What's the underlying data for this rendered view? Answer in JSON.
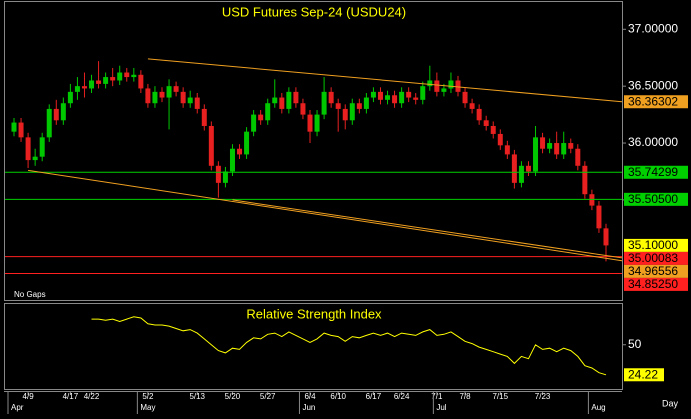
{
  "chart_data": [
    {
      "type": "candlestick",
      "title": "USD Futures Sep-24 (USDU24)",
      "note": "No Gaps",
      "x_unit_label": "Day",
      "categories": [
        null,
        null,
        "4/9",
        null,
        null,
        null,
        null,
        null,
        "4/17",
        null,
        null,
        "4/22",
        null,
        null,
        null,
        null,
        null,
        null,
        null,
        "5/2",
        null,
        null,
        null,
        null,
        null,
        null,
        "5/13",
        null,
        null,
        null,
        null,
        "5/20",
        null,
        null,
        null,
        null,
        "5/27",
        null,
        null,
        null,
        null,
        null,
        "6/4",
        null,
        null,
        null,
        "6/10",
        null,
        null,
        null,
        null,
        "6/17",
        null,
        null,
        null,
        "6/24",
        null,
        null,
        null,
        null,
        "7/1",
        null,
        null,
        null,
        "7/8",
        null,
        null,
        null,
        null,
        "7/15",
        null,
        null,
        null,
        null,
        null,
        "7/23",
        null,
        null,
        null,
        null,
        null,
        null,
        null,
        null,
        null
      ],
      "months": [
        "Apr",
        null,
        null,
        null,
        null,
        null,
        null,
        null,
        null,
        null,
        null,
        null,
        null,
        null,
        null,
        null,
        null,
        null,
        "May",
        null,
        null,
        null,
        null,
        null,
        null,
        null,
        null,
        null,
        null,
        null,
        null,
        null,
        null,
        null,
        null,
        null,
        null,
        null,
        null,
        null,
        null,
        "Jun",
        null,
        null,
        null,
        null,
        null,
        null,
        null,
        null,
        null,
        null,
        null,
        null,
        null,
        null,
        null,
        null,
        null,
        null,
        "Jul",
        null,
        null,
        null,
        null,
        null,
        null,
        null,
        null,
        null,
        null,
        null,
        null,
        null,
        null,
        null,
        null,
        null,
        null,
        null,
        null,
        null,
        "Aug",
        null,
        null
      ],
      "open": [
        36.1,
        36.18,
        36.05,
        35.85,
        35.88,
        36.05,
        36.3,
        36.2,
        36.35,
        36.45,
        36.5,
        36.48,
        36.55,
        36.52,
        36.58,
        36.55,
        36.62,
        36.58,
        36.6,
        36.48,
        36.35,
        36.45,
        36.4,
        36.5,
        36.45,
        36.35,
        36.4,
        36.3,
        36.15,
        35.8,
        35.65,
        35.75,
        35.95,
        35.9,
        36.1,
        36.25,
        36.2,
        36.35,
        36.4,
        36.3,
        36.45,
        36.35,
        36.25,
        36.1,
        36.25,
        36.45,
        36.35,
        36.3,
        36.2,
        36.35,
        36.3,
        36.4,
        36.45,
        36.38,
        36.42,
        36.35,
        36.45,
        36.4,
        36.38,
        36.5,
        36.55,
        36.45,
        36.48,
        36.55,
        36.45,
        36.35,
        36.3,
        36.2,
        36.15,
        36.08,
        35.98,
        35.9,
        35.65,
        35.8,
        35.75,
        36.05,
        35.95,
        36.0,
        35.9,
        36.0,
        35.95,
        35.8,
        35.55,
        35.45,
        35.25
      ],
      "high": [
        36.22,
        36.22,
        36.09,
        35.95,
        36.09,
        36.34,
        36.38,
        36.4,
        36.52,
        36.58,
        36.62,
        36.6,
        36.72,
        36.62,
        36.66,
        36.68,
        36.66,
        36.66,
        36.64,
        36.52,
        36.5,
        36.49,
        36.56,
        36.54,
        36.49,
        36.46,
        36.44,
        36.34,
        36.19,
        35.84,
        35.79,
        35.99,
        35.99,
        36.14,
        36.29,
        36.29,
        36.39,
        36.56,
        36.44,
        36.49,
        36.49,
        36.39,
        36.29,
        36.29,
        36.58,
        36.49,
        36.39,
        36.34,
        36.39,
        36.39,
        36.44,
        36.49,
        36.49,
        36.46,
        36.46,
        36.49,
        36.49,
        36.44,
        36.54,
        36.68,
        36.62,
        36.52,
        36.62,
        36.59,
        36.49,
        36.39,
        36.34,
        36.24,
        36.19,
        36.12,
        36.02,
        35.94,
        35.84,
        35.84,
        36.15,
        36.09,
        36.04,
        36.1,
        36.1,
        36.04,
        35.99,
        35.84,
        35.59,
        35.49,
        35.29
      ],
      "low": [
        36.06,
        36.01,
        35.78,
        35.8,
        35.84,
        36.01,
        36.16,
        36.16,
        36.31,
        36.38,
        36.4,
        36.44,
        36.48,
        36.48,
        36.5,
        36.51,
        36.54,
        36.54,
        36.44,
        36.31,
        36.31,
        36.36,
        36.12,
        36.41,
        36.31,
        36.31,
        36.26,
        36.11,
        35.76,
        35.52,
        35.61,
        35.71,
        35.86,
        35.86,
        36.06,
        36.16,
        36.16,
        36.31,
        36.26,
        36.26,
        36.31,
        36.21,
        36.0,
        36.06,
        36.21,
        36.31,
        36.1,
        36.12,
        36.16,
        36.26,
        36.26,
        36.36,
        36.34,
        36.34,
        36.31,
        36.31,
        36.36,
        36.34,
        36.34,
        36.46,
        36.41,
        36.41,
        36.44,
        36.41,
        36.31,
        36.26,
        36.16,
        36.11,
        36.04,
        35.94,
        35.86,
        35.6,
        35.61,
        35.71,
        35.71,
        35.91,
        35.91,
        35.86,
        35.86,
        35.91,
        35.76,
        35.51,
        35.41,
        35.21,
        34.96
      ],
      "close": [
        36.18,
        36.05,
        35.85,
        35.88,
        36.05,
        36.3,
        36.2,
        36.35,
        36.45,
        36.5,
        36.48,
        36.55,
        36.52,
        36.58,
        36.55,
        36.62,
        36.58,
        36.6,
        36.48,
        36.35,
        36.45,
        36.4,
        36.5,
        36.45,
        36.35,
        36.4,
        36.3,
        36.15,
        35.8,
        35.65,
        35.75,
        35.95,
        35.9,
        36.1,
        36.25,
        36.2,
        36.35,
        36.4,
        36.3,
        36.45,
        36.35,
        36.25,
        36.1,
        36.25,
        36.45,
        36.35,
        36.3,
        36.2,
        36.35,
        36.3,
        36.4,
        36.45,
        36.38,
        36.42,
        36.35,
        36.45,
        36.4,
        36.38,
        36.5,
        36.55,
        36.45,
        36.48,
        36.55,
        36.45,
        36.35,
        36.3,
        36.2,
        36.15,
        36.08,
        35.98,
        35.9,
        35.65,
        35.8,
        35.75,
        36.05,
        35.95,
        36.0,
        35.9,
        36.0,
        35.95,
        35.8,
        35.55,
        35.45,
        35.25,
        35.1
      ],
      "up_color": "#00c800",
      "down_color": "#e82020",
      "ylim": [
        34.62,
        37.24
      ],
      "yticks": [
        {
          "value": 35.5,
          "label": "35.50000"
        },
        {
          "value": 36,
          "label": "36.00000"
        },
        {
          "value": 36.5,
          "label": "36.50000"
        },
        {
          "value": 37,
          "label": "37.00000"
        }
      ],
      "levels": [
        {
          "kind": "trend",
          "start": "5/2",
          "start_value": 36.74,
          "value": 36.36302,
          "label": "36.36302",
          "color": "#f0a020"
        },
        {
          "kind": "hline",
          "value": 35.74299,
          "label": "35.74299",
          "color": "#00d000"
        },
        {
          "kind": "hline",
          "value": 35.505,
          "label": "35.50500",
          "color": "#00d000"
        },
        {
          "kind": "last",
          "value": 35.1,
          "label": "35.10000",
          "color": "#ffff00"
        },
        {
          "kind": "hline",
          "value": 35.00083,
          "label": "35.00083",
          "color": "#ff2020"
        },
        {
          "kind": "trend",
          "start": "4/9",
          "start_value": 35.76,
          "value": 34.96556,
          "label": "34.96556",
          "color": "#f0a020"
        },
        {
          "kind": "trend",
          "start": "5/20",
          "start_value": 35.5,
          "value": 34.99,
          "color": "#f0a020"
        },
        {
          "kind": "hline",
          "value": 34.8525,
          "label": "34.85250",
          "color": "#ff2020"
        }
      ]
    },
    {
      "type": "line",
      "title": "Relative Strength Index",
      "series": [
        {
          "name": "Relative Strength Index",
          "color": "#ffff00",
          "values": [
            null,
            null,
            null,
            null,
            null,
            null,
            null,
            null,
            null,
            null,
            null,
            72,
            72,
            71,
            72,
            70,
            72,
            74,
            73,
            68,
            67,
            67,
            66,
            64,
            62,
            63,
            60,
            55,
            50,
            45,
            43,
            47,
            46,
            52,
            56,
            55,
            59,
            60,
            57,
            61,
            58,
            55,
            52,
            55,
            60,
            58,
            57,
            53,
            57,
            56,
            58,
            60,
            58,
            60,
            57,
            60,
            59,
            58,
            61,
            63,
            58,
            59,
            61,
            57,
            53,
            51,
            48,
            46,
            44,
            42,
            40,
            34,
            40,
            38,
            50,
            46,
            47,
            44,
            47,
            45,
            40,
            32,
            30,
            26,
            24.22
          ]
        }
      ],
      "ylim": [
        12,
        85
      ],
      "yticks": [
        50
      ]
    }
  ]
}
